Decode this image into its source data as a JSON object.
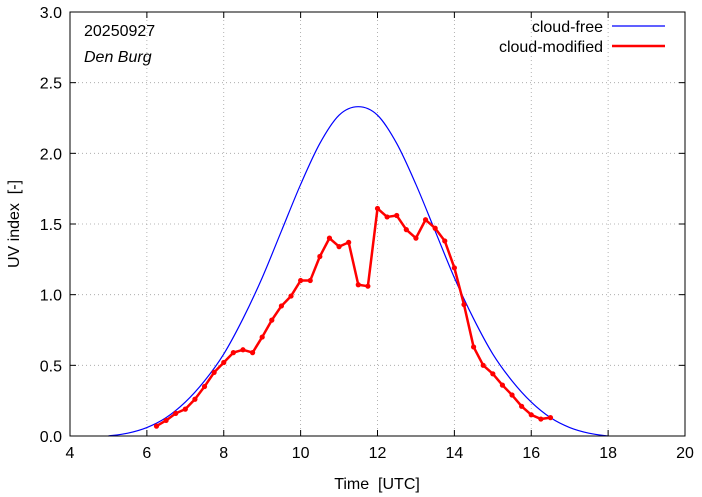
{
  "chart_data": {
    "type": "line",
    "title": "",
    "date": "20250927",
    "location": "Den Burg",
    "xlabel": "Time  [UTC]",
    "ylabel": "UV index  [-]",
    "xlim": [
      4,
      20
    ],
    "ylim": [
      0,
      3.0
    ],
    "xticks": [
      4,
      6,
      8,
      10,
      12,
      14,
      16,
      18,
      20
    ],
    "yticks": [
      0.0,
      0.5,
      1.0,
      1.5,
      2.0,
      2.5,
      3.0
    ],
    "ytick_labels": [
      "0.0",
      "0.5",
      "1.0",
      "1.5",
      "2.0",
      "2.5",
      "3.0"
    ],
    "legend_position": "top-right",
    "colors": {
      "cloud_free": "#0000ff",
      "cloud_modified": "#ff0000"
    },
    "series": [
      {
        "name": "cloud-free",
        "style": "line",
        "x": [
          5.0,
          5.5,
          6.0,
          6.5,
          7.0,
          7.5,
          8.0,
          8.5,
          9.0,
          9.5,
          10.0,
          10.5,
          11.0,
          11.5,
          12.0,
          12.5,
          13.0,
          13.5,
          14.0,
          14.5,
          15.0,
          15.5,
          16.0,
          16.5,
          17.0,
          17.5,
          18.0
        ],
        "y": [
          0.0,
          0.02,
          0.06,
          0.13,
          0.24,
          0.39,
          0.58,
          0.83,
          1.12,
          1.45,
          1.78,
          2.07,
          2.27,
          2.33,
          2.27,
          2.07,
          1.78,
          1.45,
          1.12,
          0.83,
          0.58,
          0.39,
          0.24,
          0.13,
          0.06,
          0.02,
          0.0
        ]
      },
      {
        "name": "cloud-modified",
        "style": "line-points",
        "x": [
          6.25,
          6.5,
          6.75,
          7.0,
          7.25,
          7.5,
          7.75,
          8.0,
          8.25,
          8.5,
          8.75,
          9.0,
          9.25,
          9.5,
          9.75,
          10.0,
          10.25,
          10.5,
          10.75,
          11.0,
          11.25,
          11.5,
          11.75,
          12.0,
          12.25,
          12.5,
          12.75,
          13.0,
          13.25,
          13.5,
          13.75,
          14.0,
          14.25,
          14.5,
          14.75,
          15.0,
          15.25,
          15.5,
          15.75,
          16.0,
          16.25,
          16.5
        ],
        "y": [
          0.07,
          0.11,
          0.16,
          0.19,
          0.26,
          0.35,
          0.45,
          0.52,
          0.59,
          0.61,
          0.59,
          0.7,
          0.82,
          0.92,
          0.99,
          1.1,
          1.1,
          1.27,
          1.4,
          1.34,
          1.37,
          1.07,
          1.06,
          1.61,
          1.55,
          1.56,
          1.46,
          1.4,
          1.53,
          1.47,
          1.38,
          1.19,
          0.93,
          0.63,
          0.5,
          0.44,
          0.36,
          0.29,
          0.21,
          0.15,
          0.12,
          0.13
        ]
      }
    ]
  }
}
